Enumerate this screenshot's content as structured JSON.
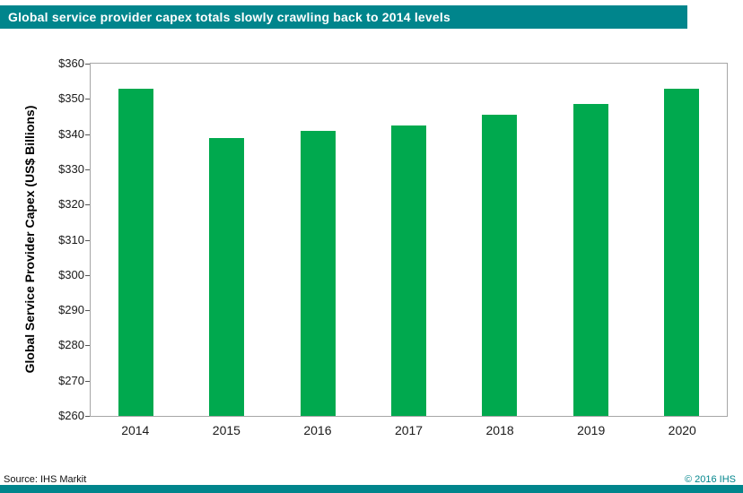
{
  "header": {
    "title": "Global service provider capex totals slowly crawling back to 2014 levels"
  },
  "footer": {
    "source": "Source: IHS Markit",
    "copyright": "© 2016 IHS"
  },
  "colors": {
    "accent": "#00858C",
    "bar": "#00A94E"
  },
  "chart_data": {
    "type": "bar",
    "categories": [
      "2014",
      "2015",
      "2016",
      "2017",
      "2018",
      "2019",
      "2020"
    ],
    "values": [
      353,
      339,
      341,
      342.5,
      345.5,
      348.5,
      353
    ],
    "title": "Global service provider capex totals slowly crawling back to 2014 levels",
    "xlabel": "",
    "ylabel": "Global Service Provider Capex (US$ Billions)",
    "ylim": [
      260,
      360
    ],
    "ytick_step": 10,
    "ytick_prefix": "$",
    "grid": false,
    "legend": "none"
  }
}
